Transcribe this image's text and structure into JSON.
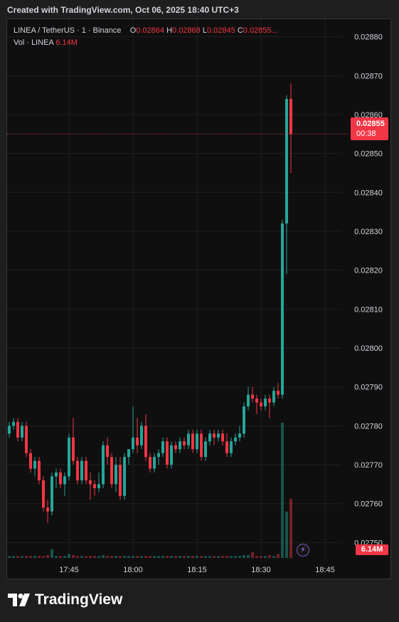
{
  "caption": "Created with TradingView.com, Oct 06, 2025 18:40 UTC+3",
  "legend": {
    "title": "LINEA / TetherUS · 1 · Binance",
    "open_label": "O",
    "open": "0.02864",
    "high_label": "H",
    "high": "0.02868",
    "low_label": "L",
    "low": "0.02845",
    "close_label": "C",
    "close": "0.02855...",
    "vol_label": "Vol · LINEA",
    "vol": "6.14M"
  },
  "last_price": {
    "value": "0.02855",
    "countdown": "00:38"
  },
  "volume_tag": "6.14M",
  "brand": "TradingView",
  "colors": {
    "up": "#26a69a",
    "down": "#f23645",
    "background": "#0f0f0f",
    "grid": "#1f1f1f"
  },
  "chart_data": {
    "type": "candlestick",
    "x_tick_labels": [
      "17:45",
      "18:00",
      "18:15",
      "18:30",
      "18:45"
    ],
    "x_tick_times": [
      45,
      60,
      75,
      90,
      105
    ],
    "y_tick_labels": [
      "0.02750",
      "0.02760",
      "0.02770",
      "0.02780",
      "0.02790",
      "0.02800",
      "0.02810",
      "0.02820",
      "0.02830",
      "0.02840",
      "0.02850",
      "0.02860",
      "0.02870",
      "0.02880"
    ],
    "ylim": [
      0.027455,
      0.028845
    ],
    "x_start_minute": 31,
    "candles": [
      [
        0.02778,
        0.02781,
        0.02777,
        0.0278,
        0.2
      ],
      [
        0.0278,
        0.02782,
        0.02779,
        0.02781,
        0.2
      ],
      [
        0.02781,
        0.02782,
        0.02776,
        0.02777,
        0.2
      ],
      [
        0.02777,
        0.02781,
        0.02776,
        0.0278,
        0.2
      ],
      [
        0.0278,
        0.02781,
        0.02772,
        0.02773,
        0.2
      ],
      [
        0.02773,
        0.02774,
        0.02768,
        0.02769,
        0.2
      ],
      [
        0.02769,
        0.02772,
        0.02767,
        0.02771,
        0.2
      ],
      [
        0.02771,
        0.02772,
        0.02765,
        0.02766,
        0.2
      ],
      [
        0.02766,
        0.02767,
        0.02758,
        0.02759,
        0.2
      ],
      [
        0.02759,
        0.02761,
        0.02755,
        0.02758,
        0.3
      ],
      [
        0.02758,
        0.02768,
        0.02757,
        0.02767,
        0.9
      ],
      [
        0.02767,
        0.02769,
        0.02764,
        0.02768,
        0.2
      ],
      [
        0.02768,
        0.02769,
        0.02764,
        0.02765,
        0.2
      ],
      [
        0.02765,
        0.02768,
        0.02762,
        0.02767,
        0.2
      ],
      [
        0.02767,
        0.02778,
        0.02766,
        0.02777,
        0.4
      ],
      [
        0.02777,
        0.02782,
        0.0277,
        0.02771,
        0.3
      ],
      [
        0.02771,
        0.02772,
        0.02765,
        0.02766,
        0.2
      ],
      [
        0.02766,
        0.02772,
        0.02765,
        0.02771,
        0.2
      ],
      [
        0.02771,
        0.02772,
        0.02765,
        0.02766,
        0.2
      ],
      [
        0.02766,
        0.02768,
        0.02761,
        0.02765,
        0.2
      ],
      [
        0.02765,
        0.02766,
        0.02762,
        0.02764,
        0.2
      ],
      [
        0.02764,
        0.02768,
        0.02763,
        0.02765,
        0.2
      ],
      [
        0.02765,
        0.02776,
        0.02764,
        0.02775,
        0.3
      ],
      [
        0.02775,
        0.02777,
        0.0277,
        0.02772,
        0.2
      ],
      [
        0.02772,
        0.02773,
        0.02764,
        0.02765,
        0.2
      ],
      [
        0.02765,
        0.02772,
        0.02763,
        0.0277,
        0.2
      ],
      [
        0.0277,
        0.02772,
        0.02761,
        0.02762,
        0.2
      ],
      [
        0.02762,
        0.02773,
        0.02761,
        0.02772,
        0.2
      ],
      [
        0.02772,
        0.02774,
        0.0277,
        0.02774,
        0.2
      ],
      [
        0.02774,
        0.02785,
        0.02773,
        0.02777,
        0.2
      ],
      [
        0.02777,
        0.02782,
        0.02773,
        0.02775,
        0.2
      ],
      [
        0.02775,
        0.02781,
        0.02774,
        0.0278,
        0.2
      ],
      [
        0.0278,
        0.02783,
        0.02771,
        0.02772,
        0.2
      ],
      [
        0.02772,
        0.02773,
        0.02768,
        0.02769,
        0.2
      ],
      [
        0.02769,
        0.02773,
        0.02768,
        0.02772,
        0.2
      ],
      [
        0.02772,
        0.02774,
        0.0277,
        0.02773,
        0.2
      ],
      [
        0.02773,
        0.02777,
        0.02772,
        0.02776,
        0.2
      ],
      [
        0.02776,
        0.02777,
        0.02769,
        0.0277,
        0.2
      ],
      [
        0.0277,
        0.02776,
        0.02769,
        0.02775,
        0.2
      ],
      [
        0.02775,
        0.02776,
        0.02773,
        0.02774,
        0.2
      ],
      [
        0.02774,
        0.02777,
        0.02773,
        0.02776,
        0.2
      ],
      [
        0.02776,
        0.02777,
        0.02774,
        0.02775,
        0.2
      ],
      [
        0.02775,
        0.02779,
        0.02774,
        0.02778,
        0.2
      ],
      [
        0.02778,
        0.02779,
        0.02773,
        0.02774,
        0.2
      ],
      [
        0.02774,
        0.02779,
        0.02773,
        0.02778,
        0.2
      ],
      [
        0.02778,
        0.02779,
        0.02771,
        0.02772,
        0.2
      ],
      [
        0.02772,
        0.02777,
        0.02771,
        0.02776,
        0.2
      ],
      [
        0.02776,
        0.02779,
        0.02775,
        0.02778,
        0.2
      ],
      [
        0.02778,
        0.02779,
        0.02775,
        0.02777,
        0.2
      ],
      [
        0.02777,
        0.02779,
        0.02776,
        0.02778,
        0.2
      ],
      [
        0.02778,
        0.02779,
        0.02775,
        0.02776,
        0.2
      ],
      [
        0.02776,
        0.02778,
        0.02772,
        0.02773,
        0.2
      ],
      [
        0.02773,
        0.02777,
        0.02772,
        0.02776,
        0.2
      ],
      [
        0.02776,
        0.02778,
        0.02775,
        0.02777,
        0.2
      ],
      [
        0.02777,
        0.0278,
        0.02776,
        0.02778,
        0.2
      ],
      [
        0.02778,
        0.02786,
        0.02777,
        0.02785,
        0.3
      ],
      [
        0.02785,
        0.0279,
        0.02784,
        0.02788,
        0.3
      ],
      [
        0.02788,
        0.0279,
        0.02786,
        0.02787,
        0.6
      ],
      [
        0.02787,
        0.02788,
        0.02783,
        0.02786,
        0.2
      ],
      [
        0.02786,
        0.02787,
        0.02784,
        0.02785,
        0.2
      ],
      [
        0.02785,
        0.02788,
        0.02784,
        0.02787,
        0.2
      ],
      [
        0.02787,
        0.02788,
        0.02782,
        0.02786,
        0.3
      ],
      [
        0.02786,
        0.0279,
        0.02785,
        0.02789,
        0.2
      ],
      [
        0.02789,
        0.02791,
        0.02787,
        0.02788,
        0.4
      ],
      [
        0.02788,
        0.02833,
        0.02787,
        0.02832,
        14.0
      ],
      [
        0.02832,
        0.02865,
        0.02819,
        0.02864,
        4.8
      ],
      [
        0.02864,
        0.02868,
        0.02845,
        0.02855,
        6.14
      ]
    ]
  }
}
